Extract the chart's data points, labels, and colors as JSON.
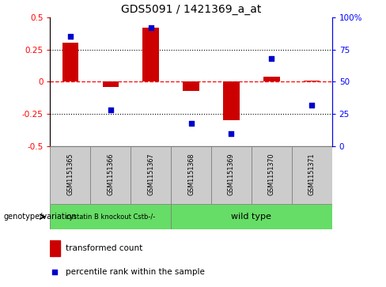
{
  "title": "GDS5091 / 1421369_a_at",
  "samples": [
    "GSM1151365",
    "GSM1151366",
    "GSM1151367",
    "GSM1151368",
    "GSM1151369",
    "GSM1151370",
    "GSM1151371"
  ],
  "red_bars": [
    0.3,
    -0.04,
    0.42,
    -0.07,
    -0.3,
    0.04,
    0.01
  ],
  "blue_dots": [
    85,
    28,
    92,
    18,
    10,
    68,
    32
  ],
  "ylim_left": [
    -0.5,
    0.5
  ],
  "ylim_right": [
    0,
    100
  ],
  "yticks_left": [
    -0.5,
    -0.25,
    0.0,
    0.25,
    0.5
  ],
  "ytick_labels_left": [
    "-0.5",
    "-0.25",
    "0",
    "0.25",
    "0.5"
  ],
  "yticks_right": [
    0,
    25,
    50,
    75,
    100
  ],
  "ytick_labels_right": [
    "0",
    "25",
    "50",
    "75",
    "100%"
  ],
  "hline_zero": 0.0,
  "hlines_dotted": [
    -0.25,
    0.25
  ],
  "bar_color": "#cc0000",
  "dot_color": "#0000cc",
  "group1_label": "cystatin B knockout Cstb-/-",
  "group2_label": "wild type",
  "group1_indices": [
    0,
    1,
    2
  ],
  "group2_indices": [
    3,
    4,
    5,
    6
  ],
  "group_color": "#66dd66",
  "group_label_prefix": "genotype/variation",
  "legend_bar_label": "transformed count",
  "legend_dot_label": "percentile rank within the sample",
  "bg_color": "#ffffff",
  "zero_line_color": "#ff0000",
  "bar_width": 0.4,
  "sample_box_color": "#cccccc"
}
